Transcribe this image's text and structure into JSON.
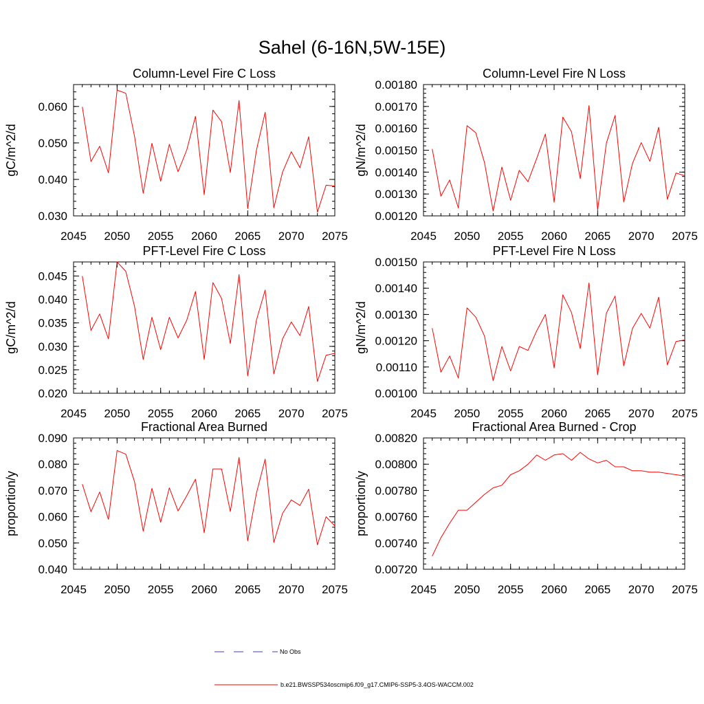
{
  "figure": {
    "title": "Sahel (6-16N,5W-15E)",
    "line_color": "#ff0000",
    "obs_color": "#3b3bd6",
    "legend": [
      {
        "label": "No Obs",
        "style": "dashed",
        "color": "#3b3bd6"
      },
      {
        "label": "b.e21.BWSSP534oscmip6.f09_g17.CMIP6-SSP5-3.4OS-WACCM.002",
        "style": "solid",
        "color": "#ff0000"
      }
    ]
  },
  "chart_data": [
    {
      "type": "line",
      "title": "Column-Level Fire C Loss",
      "ylabel": "gC/m^2/d",
      "xlim": [
        2045,
        2075
      ],
      "ylim": [
        0.03,
        0.066
      ],
      "xticks": [
        2045,
        2050,
        2055,
        2060,
        2065,
        2070,
        2075
      ],
      "xtick_labels": [
        "2045",
        "2050",
        "2055",
        "2060",
        "2065",
        "2070",
        "2075"
      ],
      "yticks": [
        0.03,
        0.04,
        0.05,
        0.06
      ],
      "ytick_labels": [
        "0.030",
        "0.040",
        "0.050",
        "0.060"
      ],
      "x": [
        2046,
        2047,
        2048,
        2049,
        2050,
        2051,
        2052,
        2053,
        2054,
        2055,
        2056,
        2057,
        2058,
        2059,
        2060,
        2061,
        2062,
        2063,
        2064,
        2065,
        2066,
        2067,
        2068,
        2069,
        2070,
        2071,
        2072,
        2073,
        2074,
        2075
      ],
      "series": [
        {
          "name": "b.e21.BWSSP534oscmip6.f09_g17.CMIP6-SSP5-3.4OS-WACCM.002",
          "values": [
            0.0599,
            0.0449,
            0.0491,
            0.0418,
            0.0645,
            0.0636,
            0.0518,
            0.0362,
            0.0499,
            0.0395,
            0.0496,
            0.0421,
            0.0481,
            0.0573,
            0.0358,
            0.059,
            0.0558,
            0.0419,
            0.0616,
            0.032,
            0.048,
            0.0584,
            0.0322,
            0.042,
            0.0476,
            0.0432,
            0.0517,
            0.031,
            0.0384,
            0.0382
          ]
        }
      ]
    },
    {
      "type": "line",
      "title": "Column-Level Fire N Loss",
      "ylabel": "gN/m^2/d",
      "xlim": [
        2045,
        2075
      ],
      "ylim": [
        0.0012,
        0.0018
      ],
      "xticks": [
        2045,
        2050,
        2055,
        2060,
        2065,
        2070,
        2075
      ],
      "xtick_labels": [
        "2045",
        "2050",
        "2055",
        "2060",
        "2065",
        "2070",
        "2075"
      ],
      "yticks": [
        0.0012,
        0.0013,
        0.0014,
        0.0015,
        0.0016,
        0.0017,
        0.0018
      ],
      "ytick_labels": [
        "0.00120",
        "0.00130",
        "0.00140",
        "0.00150",
        "0.00160",
        "0.00170",
        "0.00180"
      ],
      "x": [
        2046,
        2047,
        2048,
        2049,
        2050,
        2051,
        2052,
        2053,
        2054,
        2055,
        2056,
        2057,
        2058,
        2059,
        2060,
        2061,
        2062,
        2063,
        2064,
        2065,
        2066,
        2067,
        2068,
        2069,
        2070,
        2071,
        2072,
        2073,
        2074,
        2075
      ],
      "series": [
        {
          "name": "b.e21.BWSSP534oscmip6.f09_g17.CMIP6-SSP5-3.4OS-WACCM.002",
          "values": [
            0.001506,
            0.00129,
            0.001364,
            0.001236,
            0.001612,
            0.00158,
            0.001444,
            0.001222,
            0.001423,
            0.001271,
            0.001408,
            0.001356,
            0.001463,
            0.001574,
            0.001262,
            0.001651,
            0.001584,
            0.00137,
            0.001704,
            0.001226,
            0.001532,
            0.001659,
            0.001263,
            0.00144,
            0.001535,
            0.001449,
            0.001605,
            0.001276,
            0.001396,
            0.001383
          ]
        }
      ]
    },
    {
      "type": "line",
      "title": "PFT-Level Fire C Loss",
      "ylabel": "gC/m^2/d",
      "xlim": [
        2045,
        2075
      ],
      "ylim": [
        0.02,
        0.048
      ],
      "xticks": [
        2045,
        2050,
        2055,
        2060,
        2065,
        2070,
        2075
      ],
      "xtick_labels": [
        "2045",
        "2050",
        "2055",
        "2060",
        "2065",
        "2070",
        "2075"
      ],
      "yticks": [
        0.02,
        0.025,
        0.03,
        0.035,
        0.04,
        0.045
      ],
      "ytick_labels": [
        "0.020",
        "0.025",
        "0.030",
        "0.035",
        "0.040",
        "0.045"
      ],
      "x": [
        2046,
        2047,
        2048,
        2049,
        2050,
        2051,
        2052,
        2053,
        2054,
        2055,
        2056,
        2057,
        2058,
        2059,
        2060,
        2061,
        2062,
        2063,
        2064,
        2065,
        2066,
        2067,
        2068,
        2069,
        2070,
        2071,
        2072,
        2073,
        2074,
        2075
      ],
      "series": [
        {
          "name": "b.e21.BWSSP534oscmip6.f09_g17.CMIP6-SSP5-3.4OS-WACCM.002",
          "values": [
            0.045,
            0.0334,
            0.0369,
            0.0316,
            0.048,
            0.046,
            0.0385,
            0.0272,
            0.0362,
            0.0293,
            0.0362,
            0.0318,
            0.0356,
            0.0417,
            0.0272,
            0.0436,
            0.0402,
            0.0306,
            0.0453,
            0.0237,
            0.0356,
            0.042,
            0.0241,
            0.0316,
            0.0352,
            0.0323,
            0.0385,
            0.0225,
            0.0281,
            0.0285
          ]
        }
      ]
    },
    {
      "type": "line",
      "title": "PFT-Level Fire N Loss",
      "ylabel": "gN/m^2/d",
      "xlim": [
        2045,
        2075
      ],
      "ylim": [
        0.001,
        0.0015
      ],
      "xticks": [
        2045,
        2050,
        2055,
        2060,
        2065,
        2070,
        2075
      ],
      "xtick_labels": [
        "2045",
        "2050",
        "2055",
        "2060",
        "2065",
        "2070",
        "2075"
      ],
      "yticks": [
        0.001,
        0.0011,
        0.0012,
        0.0013,
        0.0014,
        0.0015
      ],
      "ytick_labels": [
        "0.00100",
        "0.00110",
        "0.00120",
        "0.00130",
        "0.00140",
        "0.00150"
      ],
      "x": [
        2046,
        2047,
        2048,
        2049,
        2050,
        2051,
        2052,
        2053,
        2054,
        2055,
        2056,
        2057,
        2058,
        2059,
        2060,
        2061,
        2062,
        2063,
        2064,
        2065,
        2066,
        2067,
        2068,
        2069,
        2070,
        2071,
        2072,
        2073,
        2074,
        2075
      ],
      "series": [
        {
          "name": "b.e21.BWSSP534oscmip6.f09_g17.CMIP6-SSP5-3.4OS-WACCM.002",
          "values": [
            0.001248,
            0.00108,
            0.001142,
            0.001058,
            0.001325,
            0.00129,
            0.001218,
            0.001048,
            0.001178,
            0.001085,
            0.001178,
            0.001163,
            0.001238,
            0.0013,
            0.001096,
            0.001375,
            0.001307,
            0.00117,
            0.00142,
            0.00107,
            0.001305,
            0.00137,
            0.001104,
            0.001247,
            0.001304,
            0.001248,
            0.001366,
            0.001108,
            0.001197,
            0.001203
          ]
        }
      ]
    },
    {
      "type": "line",
      "title": "Fractional Area Burned",
      "ylabel": "proportion/y",
      "xlim": [
        2045,
        2075
      ],
      "ylim": [
        0.04,
        0.09
      ],
      "xticks": [
        2045,
        2050,
        2055,
        2060,
        2065,
        2070,
        2075
      ],
      "xtick_labels": [
        "2045",
        "2050",
        "2055",
        "2060",
        "2065",
        "2070",
        "2075"
      ],
      "yticks": [
        0.04,
        0.05,
        0.06,
        0.07,
        0.08,
        0.09
      ],
      "ytick_labels": [
        "0.040",
        "0.050",
        "0.060",
        "0.070",
        "0.080",
        "0.090"
      ],
      "x": [
        2046,
        2047,
        2048,
        2049,
        2050,
        2051,
        2052,
        2053,
        2054,
        2055,
        2056,
        2057,
        2058,
        2059,
        2060,
        2061,
        2062,
        2063,
        2064,
        2065,
        2066,
        2067,
        2068,
        2069,
        2070,
        2071,
        2072,
        2073,
        2074,
        2075
      ],
      "series": [
        {
          "name": "b.e21.BWSSP534oscmip6.f09_g17.CMIP6-SSP5-3.4OS-WACCM.002",
          "values": [
            0.0724,
            0.0619,
            0.0694,
            0.059,
            0.0852,
            0.0838,
            0.0733,
            0.0545,
            0.0708,
            0.0579,
            0.071,
            0.0622,
            0.068,
            0.0743,
            0.0539,
            0.0782,
            0.0782,
            0.062,
            0.0826,
            0.0508,
            0.069,
            0.0819,
            0.0502,
            0.0613,
            0.0664,
            0.0643,
            0.0705,
            0.0493,
            0.06,
            0.0565
          ]
        }
      ]
    },
    {
      "type": "line",
      "title": "Fractional Area Burned - Crop",
      "ylabel": "proportion/y",
      "xlim": [
        2045,
        2075
      ],
      "ylim": [
        0.0072,
        0.0082
      ],
      "xticks": [
        2045,
        2050,
        2055,
        2060,
        2065,
        2070,
        2075
      ],
      "xtick_labels": [
        "2045",
        "2050",
        "2055",
        "2060",
        "2065",
        "2070",
        "2075"
      ],
      "yticks": [
        0.0072,
        0.0074,
        0.0076,
        0.0078,
        0.008,
        0.0082
      ],
      "ytick_labels": [
        "0.00720",
        "0.00740",
        "0.00760",
        "0.00780",
        "0.00800",
        "0.00820"
      ],
      "x": [
        2046,
        2047,
        2048,
        2049,
        2050,
        2051,
        2052,
        2053,
        2054,
        2055,
        2056,
        2057,
        2058,
        2059,
        2060,
        2061,
        2062,
        2063,
        2064,
        2065,
        2066,
        2067,
        2068,
        2069,
        2070,
        2071,
        2072,
        2073,
        2074,
        2075
      ],
      "series": [
        {
          "name": "b.e21.BWSSP534oscmip6.f09_g17.CMIP6-SSP5-3.4OS-WACCM.002",
          "values": [
            0.0073,
            0.00744,
            0.00755,
            0.00765,
            0.00765,
            0.00771,
            0.00777,
            0.00782,
            0.00784,
            0.00792,
            0.00795,
            0.008,
            0.00807,
            0.00803,
            0.00807,
            0.00808,
            0.00803,
            0.00809,
            0.00804,
            0.00801,
            0.00803,
            0.00798,
            0.00798,
            0.00795,
            0.00795,
            0.00794,
            0.00794,
            0.00793,
            0.00792,
            0.00791
          ]
        }
      ]
    }
  ]
}
